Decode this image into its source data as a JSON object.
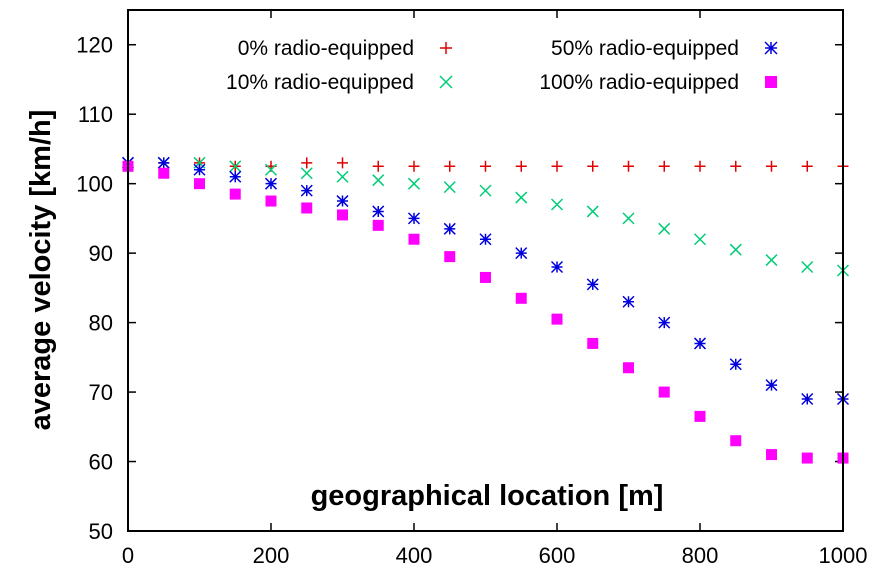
{
  "chart_data": {
    "type": "scatter",
    "xlabel": "geographical location [m]",
    "ylabel": "average velocity [km/h]",
    "xlim": [
      0,
      1000
    ],
    "ylim": [
      50,
      125
    ],
    "xticks": [
      0,
      200,
      400,
      600,
      800,
      1000
    ],
    "yticks": [
      50,
      60,
      70,
      80,
      90,
      100,
      110,
      120
    ],
    "grid": false,
    "legend_position": "top-right",
    "series": [
      {
        "name": "0% radio-equipped",
        "marker": "plus",
        "color": "#e00000",
        "x": [
          0,
          50,
          100,
          150,
          200,
          250,
          300,
          350,
          400,
          450,
          500,
          550,
          600,
          650,
          700,
          750,
          800,
          850,
          900,
          950,
          1000
        ],
        "y": [
          103,
          103,
          103,
          102.5,
          102.5,
          103,
          103,
          102.5,
          102.5,
          102.5,
          102.5,
          102.5,
          102.5,
          102.5,
          102.5,
          102.5,
          102.5,
          102.5,
          102.5,
          102.5,
          102.5
        ]
      },
      {
        "name": "10% radio-equipped",
        "marker": "x",
        "color": "#00cc77",
        "x": [
          0,
          50,
          100,
          150,
          200,
          250,
          300,
          350,
          400,
          450,
          500,
          550,
          600,
          650,
          700,
          750,
          800,
          850,
          900,
          950,
          1000
        ],
        "y": [
          103,
          103,
          103,
          102.5,
          102,
          101.5,
          101,
          100.5,
          100,
          99.5,
          99,
          98,
          97,
          96,
          95,
          93.5,
          92,
          90.5,
          89,
          88,
          87.5
        ]
      },
      {
        "name": "50% radio-equipped",
        "marker": "star",
        "color": "#0000dd",
        "x": [
          0,
          50,
          100,
          150,
          200,
          250,
          300,
          350,
          400,
          450,
          500,
          550,
          600,
          650,
          700,
          750,
          800,
          850,
          900,
          950,
          1000
        ],
        "y": [
          103,
          103,
          102,
          101,
          100,
          99,
          97.5,
          96,
          95,
          93.5,
          92,
          90,
          88,
          85.5,
          83,
          80,
          77,
          74,
          71,
          69,
          69
        ]
      },
      {
        "name": "100% radio-equipped",
        "marker": "filled-square",
        "color": "#ff00ff",
        "x": [
          0,
          50,
          100,
          150,
          200,
          250,
          300,
          350,
          400,
          450,
          500,
          550,
          600,
          650,
          700,
          750,
          800,
          850,
          900,
          950,
          1000
        ],
        "y": [
          102.5,
          101.5,
          100,
          98.5,
          97.5,
          96.5,
          95.5,
          94,
          92,
          89.5,
          86.5,
          83.5,
          80.5,
          77,
          73.5,
          70,
          66.5,
          63,
          61,
          60.5,
          60.5
        ]
      }
    ]
  }
}
